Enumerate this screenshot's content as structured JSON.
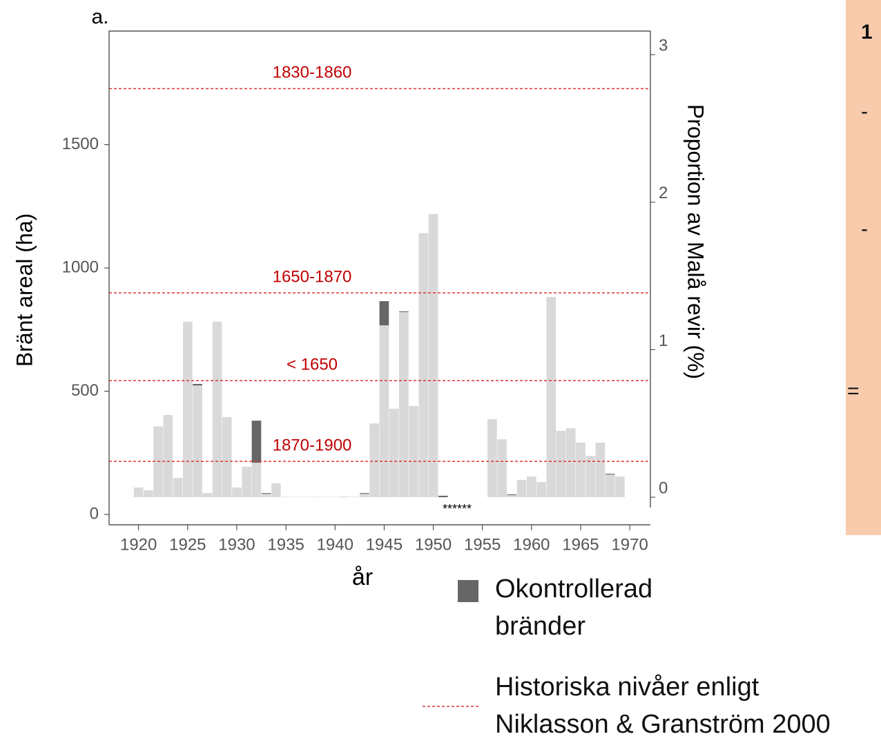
{
  "chart_data": {
    "type": "bar",
    "stacked": true,
    "panel_label": "a.",
    "xlabel": "år",
    "ylabel": "Bränt areal (ha)",
    "y2label": "Proportion av Malå revir (%)",
    "x": [
      1920,
      1921,
      1922,
      1923,
      1924,
      1925,
      1926,
      1927,
      1928,
      1929,
      1930,
      1931,
      1932,
      1933,
      1934,
      1935,
      1936,
      1937,
      1938,
      1939,
      1940,
      1941,
      1942,
      1943,
      1944,
      1945,
      1946,
      1947,
      1948,
      1949,
      1950,
      1951,
      1952,
      1953,
      1954,
      1955,
      1956,
      1957,
      1958,
      1959,
      1960,
      1961,
      1962,
      1963,
      1964,
      1965,
      1966,
      1967,
      1968,
      1969
    ],
    "series": [
      {
        "color": "#d9d9d9",
        "axis": "y2",
        "values": [
          0.066,
          0.047,
          0.48,
          0.557,
          0.131,
          1.19,
          0.758,
          0.028,
          1.19,
          0.543,
          0.066,
          0.206,
          0.234,
          0.023,
          0.094,
          0.003,
          0.003,
          0.003,
          0.003,
          0.003,
          0.003,
          0.005,
          0.003,
          0.023,
          0.5,
          1.165,
          0.6,
          1.255,
          0.618,
          1.79,
          1.92,
          0,
          0,
          0,
          0,
          0,
          0.529,
          0.393,
          0.014,
          0.117,
          0.14,
          0.103,
          1.357,
          0.45,
          0.468,
          0.37,
          0.28,
          0.37,
          0.154,
          0.14
        ]
      },
      {
        "name": "Okontrollerad bränder",
        "color": "#666666",
        "axis": "y2",
        "values": [
          0,
          0,
          0,
          0,
          0,
          0,
          0.01,
          0,
          0,
          0,
          0,
          0,
          0.285,
          0.005,
          0,
          0,
          0,
          0,
          0,
          0,
          0,
          0,
          0,
          0.005,
          0,
          0.164,
          0,
          0.005,
          0,
          0,
          0,
          0.01,
          0,
          0,
          0,
          0,
          0,
          0,
          0.005,
          0,
          0,
          0,
          0,
          0,
          0,
          0,
          0,
          0,
          0.005,
          0
        ]
      }
    ],
    "reference_lines": [
      {
        "label": "1830-1860",
        "value": 2.77
      },
      {
        "label": "1650-1870",
        "value": 1.385
      },
      {
        "label": "< 1650",
        "value": 0.79
      },
      {
        "label": "1870-1900",
        "value": 0.243
      }
    ],
    "reference_color": "#e03030",
    "reference_legend": "Historiska nivåer enligt Niklasson & Granström 2000",
    "annotation": "******",
    "xlim": [
      1917,
      1972.1
    ],
    "xticks": [
      1920,
      1925,
      1930,
      1935,
      1940,
      1945,
      1950,
      1955,
      1960,
      1965,
      1970
    ],
    "ylim": [
      -42,
      1961
    ],
    "yticks": [
      0,
      500,
      1000,
      1500
    ],
    "y2lim": [
      -0.187,
      3.16
    ],
    "y2ticks": [
      0,
      1,
      2,
      3
    ]
  },
  "side_panel": {
    "heading": "1",
    "items": [
      "-",
      "-",
      "="
    ]
  }
}
